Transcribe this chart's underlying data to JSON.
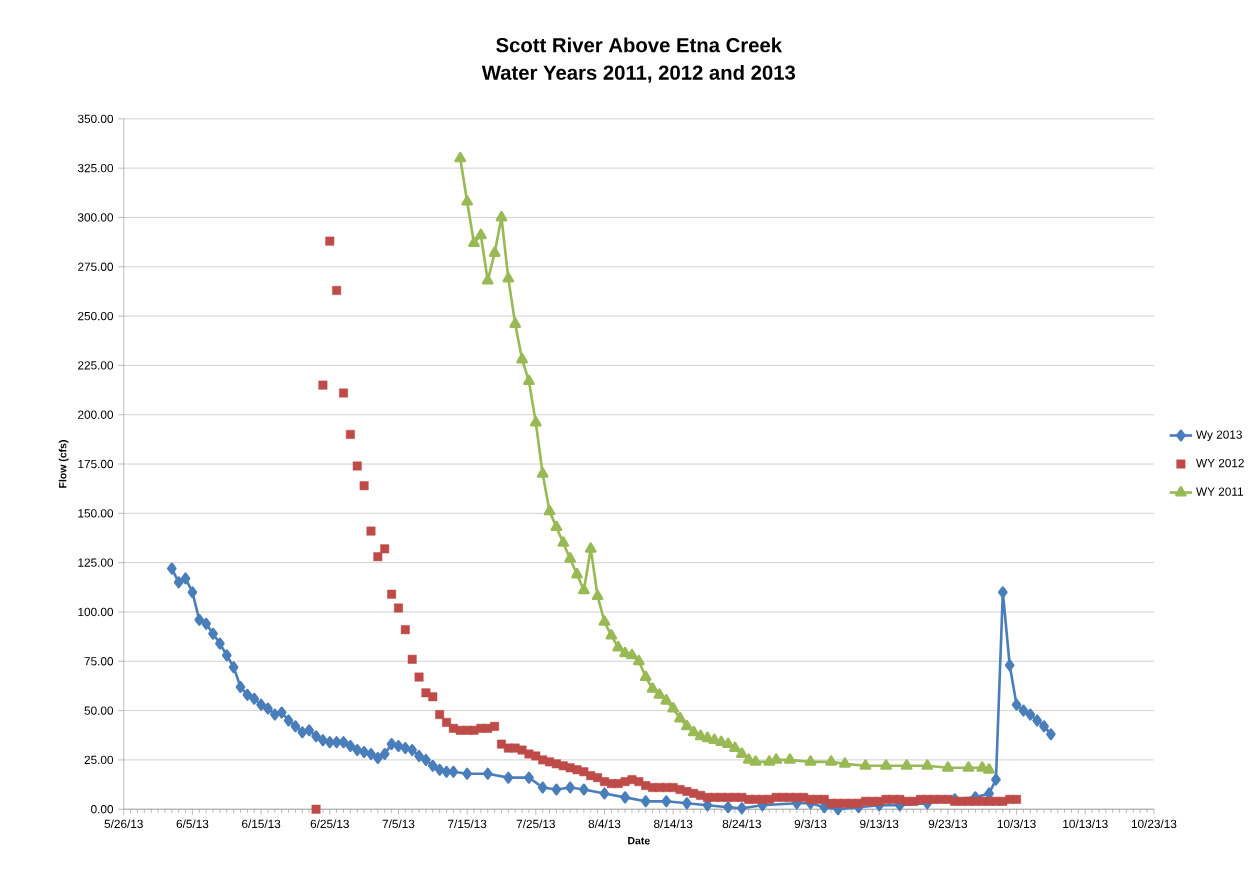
{
  "chart_data": {
    "type": "line",
    "title": "Scott River Above Etna Creek",
    "subtitle": "Water Years 2011, 2012 and 2013",
    "xlabel": "Date",
    "ylabel": "Flow (cfs)",
    "xlim": [
      "2013-05-26",
      "2013-10-23"
    ],
    "xticks": [
      {
        "value": "2013-05-26",
        "label": "5/26/13"
      },
      {
        "value": "2013-06-05",
        "label": "6/5/13"
      },
      {
        "value": "2013-06-15",
        "label": "6/15/13"
      },
      {
        "value": "2013-06-25",
        "label": "6/25/13"
      },
      {
        "value": "2013-07-05",
        "label": "7/5/13"
      },
      {
        "value": "2013-07-15",
        "label": "7/15/13"
      },
      {
        "value": "2013-07-25",
        "label": "7/25/13"
      },
      {
        "value": "2013-08-04",
        "label": "8/4/13"
      },
      {
        "value": "2013-08-14",
        "label": "8/14/13"
      },
      {
        "value": "2013-08-24",
        "label": "8/24/13"
      },
      {
        "value": "2013-09-03",
        "label": "9/3/13"
      },
      {
        "value": "2013-09-13",
        "label": "9/13/13"
      },
      {
        "value": "2013-09-23",
        "label": "9/23/13"
      },
      {
        "value": "2013-10-03",
        "label": "10/3/13"
      },
      {
        "value": "2013-10-13",
        "label": "10/13/13"
      },
      {
        "value": "2013-10-23",
        "label": "10/23/13"
      }
    ],
    "ylim": [
      0,
      350
    ],
    "yticks": [
      {
        "value": 0,
        "label": "0.00"
      },
      {
        "value": 25,
        "label": "25.00"
      },
      {
        "value": 50,
        "label": "50.00"
      },
      {
        "value": 75,
        "label": "75.00"
      },
      {
        "value": 100,
        "label": "100.00"
      },
      {
        "value": 125,
        "label": "125.00"
      },
      {
        "value": 150,
        "label": "150.00"
      },
      {
        "value": 175,
        "label": "175.00"
      },
      {
        "value": 200,
        "label": "200.00"
      },
      {
        "value": 225,
        "label": "225.00"
      },
      {
        "value": 250,
        "label": "250.00"
      },
      {
        "value": 275,
        "label": "275.00"
      },
      {
        "value": 300,
        "label": "300.00"
      },
      {
        "value": 325,
        "label": "325.00"
      },
      {
        "value": 350,
        "label": "350.00"
      }
    ],
    "grid": "y",
    "legend": "right",
    "series": [
      {
        "name": "Wy 2013",
        "color": "#4a7ebb",
        "marker": "diamond",
        "x": [
          "2013-06-02",
          "2013-06-03",
          "2013-06-04",
          "2013-06-05",
          "2013-06-06",
          "2013-06-07",
          "2013-06-08",
          "2013-06-09",
          "2013-06-10",
          "2013-06-11",
          "2013-06-12",
          "2013-06-13",
          "2013-06-14",
          "2013-06-15",
          "2013-06-16",
          "2013-06-17",
          "2013-06-18",
          "2013-06-19",
          "2013-06-20",
          "2013-06-21",
          "2013-06-22",
          "2013-06-23",
          "2013-06-24",
          "2013-06-25",
          "2013-06-26",
          "2013-06-27",
          "2013-06-28",
          "2013-06-29",
          "2013-06-30",
          "2013-07-01",
          "2013-07-02",
          "2013-07-03",
          "2013-07-04",
          "2013-07-05",
          "2013-07-06",
          "2013-07-07",
          "2013-07-08",
          "2013-07-09",
          "2013-07-10",
          "2013-07-11",
          "2013-07-12",
          "2013-07-13",
          "2013-07-15",
          "2013-07-18",
          "2013-07-21",
          "2013-07-24",
          "2013-07-26",
          "2013-07-28",
          "2013-07-30",
          "2013-08-01",
          "2013-08-04",
          "2013-08-07",
          "2013-08-10",
          "2013-08-13",
          "2013-08-16",
          "2013-08-19",
          "2013-08-22",
          "2013-08-24",
          "2013-08-27",
          "2013-09-01",
          "2013-09-03",
          "2013-09-05",
          "2013-09-07",
          "2013-09-10",
          "2013-09-13",
          "2013-09-16",
          "2013-09-20",
          "2013-09-24",
          "2013-09-27",
          "2013-09-29",
          "2013-09-30",
          "2013-10-01",
          "2013-10-02",
          "2013-10-03",
          "2013-10-04",
          "2013-10-05",
          "2013-10-06",
          "2013-10-07",
          "2013-10-08"
        ],
        "values": [
          122,
          115,
          117,
          110,
          96,
          94,
          89,
          84,
          78,
          72,
          62,
          58,
          56,
          53,
          51,
          48,
          49,
          45,
          42,
          39,
          40,
          37,
          35,
          34,
          34,
          34,
          32,
          30,
          29,
          28,
          26,
          28,
          33,
          32,
          31,
          30,
          27,
          25,
          22,
          20,
          19,
          19,
          18,
          18,
          16,
          16,
          11,
          10,
          11,
          10,
          8,
          6,
          4,
          4,
          3,
          2,
          1,
          0.5,
          2,
          3,
          3,
          1,
          0,
          1,
          2,
          2,
          3,
          5,
          6,
          8,
          15,
          110,
          73,
          53,
          50,
          48,
          45,
          42,
          38
        ]
      },
      {
        "name": "WY 2012",
        "color": "#be4b48",
        "type": "scatter",
        "marker": "square",
        "x": [
          "2013-06-23",
          "2013-06-24",
          "2013-06-25",
          "2013-06-26",
          "2013-06-27",
          "2013-06-28",
          "2013-06-29",
          "2013-06-30",
          "2013-07-01",
          "2013-07-02",
          "2013-07-03",
          "2013-07-04",
          "2013-07-05",
          "2013-07-06",
          "2013-07-07",
          "2013-07-08",
          "2013-07-09",
          "2013-07-10",
          "2013-07-11",
          "2013-07-12",
          "2013-07-13",
          "2013-07-14",
          "2013-07-15",
          "2013-07-16",
          "2013-07-17",
          "2013-07-18",
          "2013-07-19",
          "2013-07-20",
          "2013-07-21",
          "2013-07-22",
          "2013-07-23",
          "2013-07-24",
          "2013-07-25",
          "2013-07-26",
          "2013-07-27",
          "2013-07-28",
          "2013-07-29",
          "2013-07-30",
          "2013-07-31",
          "2013-08-01",
          "2013-08-02",
          "2013-08-03",
          "2013-08-04",
          "2013-08-05",
          "2013-08-06",
          "2013-08-07",
          "2013-08-08",
          "2013-08-09",
          "2013-08-10",
          "2013-08-11",
          "2013-08-12",
          "2013-08-13",
          "2013-08-14",
          "2013-08-15",
          "2013-08-16",
          "2013-08-17",
          "2013-08-18",
          "2013-08-19",
          "2013-08-20",
          "2013-08-21",
          "2013-08-22",
          "2013-08-23",
          "2013-08-24",
          "2013-08-25",
          "2013-08-26",
          "2013-08-27",
          "2013-08-28",
          "2013-08-29",
          "2013-08-30",
          "2013-08-31",
          "2013-09-01",
          "2013-09-02",
          "2013-09-03",
          "2013-09-04",
          "2013-09-05",
          "2013-09-06",
          "2013-09-07",
          "2013-09-08",
          "2013-09-09",
          "2013-09-10",
          "2013-09-11",
          "2013-09-12",
          "2013-09-13",
          "2013-09-14",
          "2013-09-15",
          "2013-09-16",
          "2013-09-17",
          "2013-09-18",
          "2013-09-19",
          "2013-09-20",
          "2013-09-21",
          "2013-09-22",
          "2013-09-23",
          "2013-09-24",
          "2013-09-25",
          "2013-09-26",
          "2013-09-27",
          "2013-09-28",
          "2013-09-29",
          "2013-09-30",
          "2013-10-01",
          "2013-10-02",
          "2013-10-03"
        ],
        "values": [
          0,
          215,
          288,
          263,
          211,
          190,
          174,
          164,
          141,
          128,
          132,
          109,
          102,
          91,
          76,
          67,
          59,
          57,
          48,
          44,
          41,
          40,
          40,
          40,
          41,
          41,
          42,
          33,
          31,
          31,
          30,
          28,
          27,
          25,
          24,
          23,
          22,
          21,
          20,
          19,
          17,
          16,
          14,
          13,
          13,
          14,
          15,
          14,
          12,
          11,
          11,
          11,
          11,
          10,
          9,
          8,
          7,
          6,
          6,
          6,
          6,
          6,
          6,
          5,
          5,
          5,
          5,
          6,
          6,
          6,
          6,
          6,
          5,
          5,
          5,
          3,
          3,
          3,
          3,
          3,
          4,
          4,
          4,
          5,
          5,
          5,
          4,
          4,
          5,
          5,
          5,
          5,
          5,
          4,
          4,
          4,
          4,
          4,
          4,
          4,
          4,
          5,
          5
        ]
      },
      {
        "name": "WY 2011",
        "color": "#98b954",
        "marker": "triangle",
        "x": [
          "2013-07-14",
          "2013-07-15",
          "2013-07-16",
          "2013-07-17",
          "2013-07-18",
          "2013-07-19",
          "2013-07-20",
          "2013-07-21",
          "2013-07-22",
          "2013-07-23",
          "2013-07-24",
          "2013-07-25",
          "2013-07-26",
          "2013-07-27",
          "2013-07-28",
          "2013-07-29",
          "2013-07-30",
          "2013-07-31",
          "2013-08-01",
          "2013-08-02",
          "2013-08-03",
          "2013-08-04",
          "2013-08-05",
          "2013-08-06",
          "2013-08-07",
          "2013-08-08",
          "2013-08-09",
          "2013-08-10",
          "2013-08-11",
          "2013-08-12",
          "2013-08-13",
          "2013-08-14",
          "2013-08-15",
          "2013-08-16",
          "2013-08-17",
          "2013-08-18",
          "2013-08-19",
          "2013-08-20",
          "2013-08-21",
          "2013-08-22",
          "2013-08-23",
          "2013-08-24",
          "2013-08-25",
          "2013-08-26",
          "2013-08-28",
          "2013-08-29",
          "2013-08-31",
          "2013-09-03",
          "2013-09-06",
          "2013-09-08",
          "2013-09-11",
          "2013-09-14",
          "2013-09-17",
          "2013-09-20",
          "2013-09-23",
          "2013-09-26",
          "2013-09-28",
          "2013-09-29"
        ],
        "values": [
          330,
          308,
          287,
          291,
          268,
          282,
          300,
          269,
          246,
          228,
          217,
          196,
          170,
          151,
          143,
          135,
          127,
          119,
          111,
          132,
          108,
          95,
          88,
          82,
          79,
          78,
          75,
          67,
          61,
          58,
          55,
          51,
          46,
          42,
          39,
          37,
          36,
          35,
          34,
          33,
          31,
          28,
          25,
          24,
          24,
          25,
          25,
          24,
          24,
          23,
          22,
          22,
          22,
          22,
          21,
          21,
          21,
          20
        ]
      }
    ]
  }
}
